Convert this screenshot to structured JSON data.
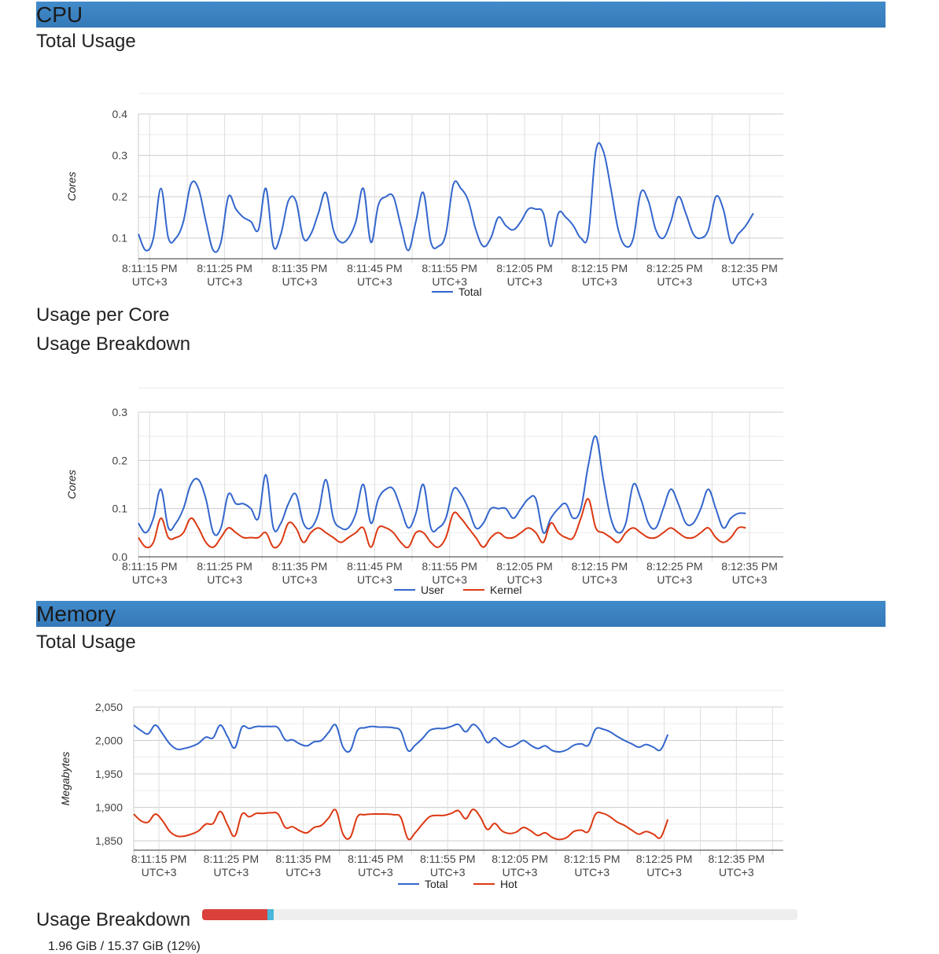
{
  "sections": {
    "cpu": {
      "title": "CPU"
    },
    "memory": {
      "title": "Memory"
    }
  },
  "cpu": {
    "total_title": "Total Usage",
    "per_core_title": "Usage per Core",
    "breakdown_title": "Usage Breakdown"
  },
  "memory": {
    "total_title": "Total Usage",
    "breakdown_title": "Usage Breakdown",
    "usage_text": "1.96 GiB / 15.37 GiB (12%)",
    "hot_fraction": 0.11,
    "cold_fraction": 0.01,
    "colors": {
      "hot": "#d9413a",
      "cold": "#4ab6d9",
      "track": "#eeeeee"
    }
  },
  "chart_data": [
    {
      "id": "cpu-total",
      "type": "line",
      "ylabel": "Cores",
      "ylim": [
        0.05,
        0.4
      ],
      "yticks": [
        0.1,
        0.2,
        0.3,
        0.4
      ],
      "ytick_labels": [
        "0.1",
        "0.2",
        "0.3",
        "0.4"
      ],
      "xlim": [
        0,
        86
      ],
      "xticks": [
        1.5,
        11.5,
        21.5,
        31.5,
        41.5,
        51.5,
        61.5,
        71.5,
        81.5
      ],
      "xtick_labels": [
        [
          "8:11:15 PM",
          "UTC+3"
        ],
        [
          "8:11:25 PM",
          "UTC+3"
        ],
        [
          "8:11:35 PM",
          "UTC+3"
        ],
        [
          "8:11:45 PM",
          "UTC+3"
        ],
        [
          "8:11:55 PM",
          "UTC+3"
        ],
        [
          "8:12:05 PM",
          "UTC+3"
        ],
        [
          "8:12:15 PM",
          "UTC+3"
        ],
        [
          "8:12:25 PM",
          "UTC+3"
        ],
        [
          "8:12:35 PM",
          "UTC+3"
        ]
      ],
      "grid": true,
      "legend": "bottom",
      "series": [
        {
          "name": "Total",
          "color": "#3366cc",
          "values": [
            0.11,
            0.07,
            0.1,
            0.22,
            0.1,
            0.1,
            0.14,
            0.23,
            0.22,
            0.14,
            0.07,
            0.09,
            0.2,
            0.17,
            0.15,
            0.14,
            0.12,
            0.22,
            0.08,
            0.11,
            0.19,
            0.19,
            0.1,
            0.11,
            0.16,
            0.21,
            0.12,
            0.09,
            0.1,
            0.14,
            0.22,
            0.09,
            0.18,
            0.2,
            0.2,
            0.13,
            0.07,
            0.14,
            0.21,
            0.09,
            0.08,
            0.11,
            0.23,
            0.22,
            0.19,
            0.12,
            0.08,
            0.1,
            0.15,
            0.13,
            0.12,
            0.14,
            0.17,
            0.17,
            0.16,
            0.08,
            0.16,
            0.15,
            0.13,
            0.1,
            0.11,
            0.31,
            0.31,
            0.22,
            0.12,
            0.08,
            0.1,
            0.21,
            0.19,
            0.12,
            0.1,
            0.14,
            0.2,
            0.16,
            0.11,
            0.1,
            0.12,
            0.2,
            0.17,
            0.09,
            0.11,
            0.13,
            0.16
          ]
        }
      ]
    },
    {
      "id": "cpu-breakdown",
      "type": "line",
      "ylabel": "Cores",
      "ylim": [
        0,
        0.3
      ],
      "yticks": [
        0,
        0.1,
        0.2,
        0.3
      ],
      "ytick_labels": [
        "0.0",
        "0.1",
        "0.2",
        "0.3"
      ],
      "xlim": [
        0,
        86
      ],
      "xticks": [
        1.5,
        11.5,
        21.5,
        31.5,
        41.5,
        51.5,
        61.5,
        71.5,
        81.5
      ],
      "xtick_labels": [
        [
          "8:11:15 PM",
          "UTC+3"
        ],
        [
          "8:11:25 PM",
          "UTC+3"
        ],
        [
          "8:11:35 PM",
          "UTC+3"
        ],
        [
          "8:11:45 PM",
          "UTC+3"
        ],
        [
          "8:11:55 PM",
          "UTC+3"
        ],
        [
          "8:12:05 PM",
          "UTC+3"
        ],
        [
          "8:12:15 PM",
          "UTC+3"
        ],
        [
          "8:12:25 PM",
          "UTC+3"
        ],
        [
          "8:12:35 PM",
          "UTC+3"
        ]
      ],
      "grid": true,
      "legend": "bottom",
      "series": [
        {
          "name": "User",
          "color": "#3366cc",
          "values": [
            0.07,
            0.05,
            0.08,
            0.14,
            0.06,
            0.07,
            0.1,
            0.15,
            0.16,
            0.12,
            0.05,
            0.06,
            0.13,
            0.11,
            0.11,
            0.1,
            0.08,
            0.17,
            0.06,
            0.07,
            0.11,
            0.13,
            0.07,
            0.06,
            0.09,
            0.16,
            0.08,
            0.06,
            0.06,
            0.09,
            0.15,
            0.07,
            0.12,
            0.14,
            0.14,
            0.1,
            0.06,
            0.09,
            0.15,
            0.06,
            0.06,
            0.08,
            0.14,
            0.13,
            0.1,
            0.06,
            0.07,
            0.1,
            0.1,
            0.1,
            0.08,
            0.1,
            0.12,
            0.12,
            0.05,
            0.08,
            0.1,
            0.11,
            0.08,
            0.1,
            0.19,
            0.25,
            0.16,
            0.08,
            0.05,
            0.07,
            0.15,
            0.12,
            0.07,
            0.06,
            0.1,
            0.14,
            0.11,
            0.07,
            0.07,
            0.1,
            0.14,
            0.1,
            0.06,
            0.08,
            0.09,
            0.09
          ]
        },
        {
          "name": "Kernel",
          "color": "#dc3912",
          "values": [
            0.04,
            0.02,
            0.03,
            0.08,
            0.04,
            0.04,
            0.05,
            0.08,
            0.06,
            0.03,
            0.02,
            0.04,
            0.06,
            0.05,
            0.04,
            0.04,
            0.04,
            0.05,
            0.02,
            0.03,
            0.07,
            0.06,
            0.03,
            0.05,
            0.06,
            0.05,
            0.04,
            0.03,
            0.04,
            0.05,
            0.06,
            0.02,
            0.06,
            0.06,
            0.05,
            0.03,
            0.02,
            0.05,
            0.05,
            0.03,
            0.02,
            0.04,
            0.09,
            0.08,
            0.06,
            0.04,
            0.02,
            0.04,
            0.05,
            0.04,
            0.04,
            0.05,
            0.06,
            0.05,
            0.03,
            0.07,
            0.05,
            0.04,
            0.04,
            0.08,
            0.12,
            0.06,
            0.05,
            0.04,
            0.03,
            0.05,
            0.06,
            0.05,
            0.04,
            0.04,
            0.05,
            0.06,
            0.05,
            0.04,
            0.04,
            0.05,
            0.06,
            0.04,
            0.03,
            0.04,
            0.06,
            0.06
          ]
        }
      ]
    },
    {
      "id": "memory-total",
      "type": "line",
      "ylabel": "Megabytes",
      "ylim": [
        1836,
        2050
      ],
      "yticks": [
        1850,
        1900,
        1950,
        2000,
        2050
      ],
      "ytick_labels": [
        "1,850",
        "1,900",
        "1,950",
        "2,000",
        "2,050"
      ],
      "xlim": [
        0,
        90
      ],
      "xticks": [
        3.5,
        13.5,
        23.5,
        33.5,
        43.5,
        53.5,
        63.5,
        73.5,
        83.5
      ],
      "xtick_labels": [
        [
          "8:11:15 PM",
          "UTC+3"
        ],
        [
          "8:11:25 PM",
          "UTC+3"
        ],
        [
          "8:11:35 PM",
          "UTC+3"
        ],
        [
          "8:11:45 PM",
          "UTC+3"
        ],
        [
          "8:11:55 PM",
          "UTC+3"
        ],
        [
          "8:12:05 PM",
          "UTC+3"
        ],
        [
          "8:12:15 PM",
          "UTC+3"
        ],
        [
          "8:12:25 PM",
          "UTC+3"
        ],
        [
          "8:12:35 PM",
          "UTC+3"
        ]
      ],
      "grid": true,
      "legend": "bottom",
      "series": [
        {
          "name": "Total",
          "color": "#3366cc",
          "values": [
            2023,
            2015,
            2010,
            2023,
            2010,
            1995,
            1987,
            1988,
            1991,
            1996,
            2005,
            2004,
            2023,
            2006,
            1989,
            2020,
            2018,
            2021,
            2021,
            2021,
            2019,
            2001,
            2001,
            1995,
            1992,
            1998,
            2000,
            2012,
            2023,
            1990,
            1985,
            2015,
            2019,
            2021,
            2020,
            2020,
            2019,
            2014,
            1985,
            1993,
            2003,
            2015,
            2018,
            2018,
            2021,
            2024,
            2013,
            2024,
            2015,
            1997,
            2004,
            1995,
            1990,
            1994,
            2000,
            1993,
            1988,
            1992,
            1985,
            1983,
            1986,
            1993,
            1995,
            1993,
            2017,
            2017,
            2013,
            2006,
            2000,
            1995,
            1990,
            1994,
            1990,
            1986,
            2009
          ]
        },
        {
          "name": "Hot",
          "color": "#dc3912",
          "values": [
            1890,
            1880,
            1878,
            1890,
            1880,
            1864,
            1857,
            1857,
            1860,
            1865,
            1875,
            1876,
            1894,
            1874,
            1857,
            1890,
            1886,
            1891,
            1891,
            1892,
            1890,
            1870,
            1871,
            1865,
            1862,
            1870,
            1873,
            1884,
            1896,
            1860,
            1855,
            1886,
            1889,
            1890,
            1890,
            1890,
            1889,
            1885,
            1853,
            1862,
            1875,
            1886,
            1888,
            1888,
            1891,
            1895,
            1883,
            1897,
            1886,
            1867,
            1876,
            1865,
            1861,
            1863,
            1870,
            1865,
            1858,
            1862,
            1855,
            1852,
            1855,
            1864,
            1866,
            1864,
            1890,
            1891,
            1886,
            1878,
            1873,
            1866,
            1860,
            1864,
            1860,
            1855,
            1882
          ]
        }
      ]
    }
  ]
}
